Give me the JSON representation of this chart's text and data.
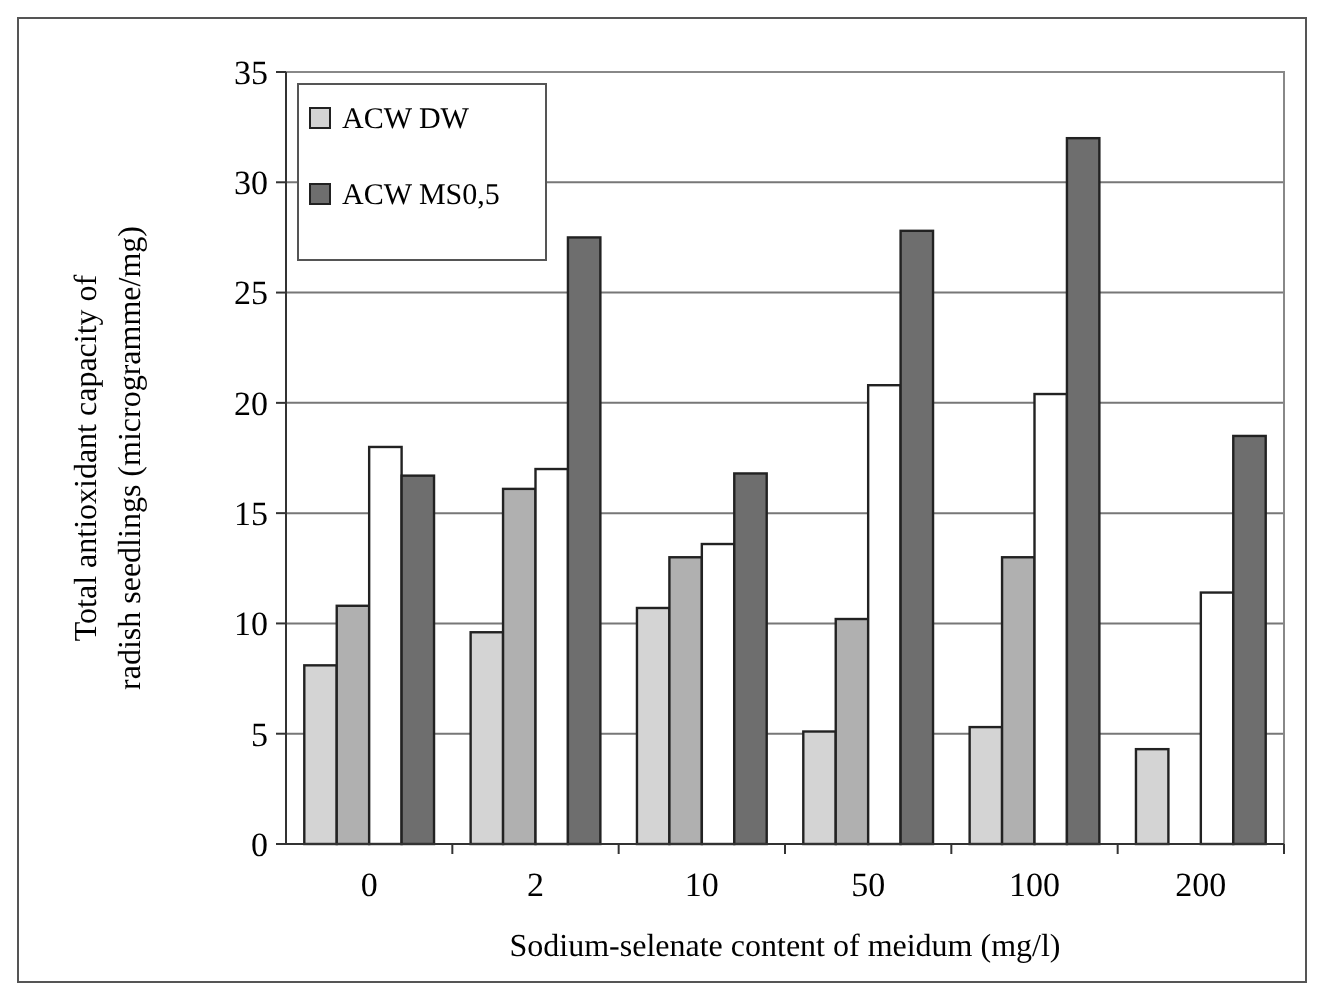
{
  "chart_data": {
    "type": "bar",
    "xlabel": "Sodium-selenate content of meidum (mg/l)",
    "ylabel": "Total antioxidant capacity of radish seedlings (microgramme/mg)",
    "categories": [
      "0",
      "2",
      "10",
      "50",
      "100",
      "200"
    ],
    "series": [
      {
        "name": "ACW DW",
        "color": "#d4d4d4",
        "values": [
          8.1,
          9.6,
          10.7,
          5.1,
          5.3,
          4.3
        ]
      },
      {
        "color": "#b0b0b0",
        "values": [
          10.8,
          16.1,
          13,
          10.2,
          13,
          null
        ]
      },
      {
        "color": "#ffffff",
        "values": [
          18,
          17,
          13.6,
          20.8,
          20.4,
          11.4
        ]
      },
      {
        "name": "ACW MS0,5",
        "color": "#6e6e6e",
        "values": [
          16.7,
          27.5,
          16.8,
          27.8,
          32,
          18.5
        ]
      }
    ],
    "ylim": [
      0,
      35
    ],
    "yticks": [
      0,
      5,
      10,
      15,
      20,
      25,
      30,
      35
    ],
    "grid": "y",
    "legend": "top left"
  }
}
